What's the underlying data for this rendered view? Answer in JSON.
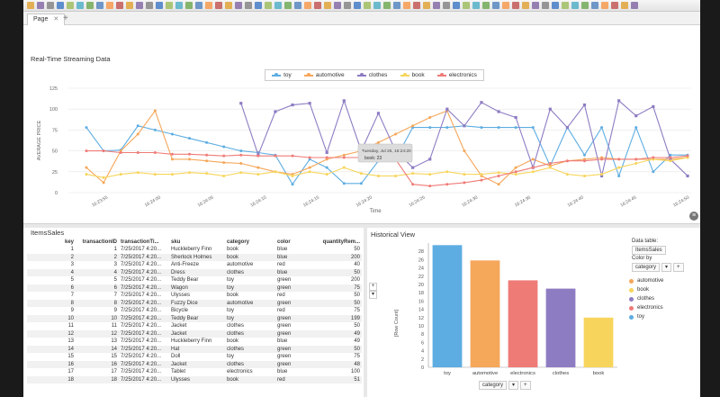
{
  "tabs": [
    {
      "label": "Page"
    }
  ],
  "stream_panel": {
    "title": "Real-Time Streaming Data"
  },
  "sales_panel": {
    "title": "ItemsSales"
  },
  "history_panel": {
    "title": "Historical View"
  },
  "history_controls": {
    "data_table_label": "Data table:",
    "data_table_value": "ItemsSales",
    "color_by_label": "Color by",
    "color_by_value": "category",
    "axis_x_value": "category",
    "axis_y_label": "[Row Count]"
  },
  "colors": {
    "toy": "#5dade2",
    "automotive": "#f5a75a",
    "clothes": "#8e7cc3",
    "book": "#f7d55c",
    "electronics": "#ef7b77"
  },
  "table": {
    "columns": [
      "key",
      "transactionID",
      "transactionTi...",
      "sku",
      "category",
      "color",
      "quantityRem..."
    ],
    "rows": [
      [
        "1",
        "1",
        "7/25/2017 4:20...",
        "Huckleberry Finn",
        "book",
        "blue",
        "50"
      ],
      [
        "2",
        "2",
        "7/25/2017 4:20...",
        "Sherlock Holmes",
        "book",
        "blue",
        "200"
      ],
      [
        "3",
        "3",
        "7/25/2017 4:20...",
        "Anti-Freeze",
        "automotive",
        "red",
        "40"
      ],
      [
        "4",
        "4",
        "7/25/2017 4:20...",
        "Dress",
        "clothes",
        "blue",
        "50"
      ],
      [
        "5",
        "5",
        "7/25/2017 4:20...",
        "Teddy Bear",
        "toy",
        "green",
        "200"
      ],
      [
        "6",
        "6",
        "7/25/2017 4:20...",
        "Wagon",
        "toy",
        "green",
        "75"
      ],
      [
        "7",
        "7",
        "7/25/2017 4:20...",
        "Ulysses",
        "book",
        "red",
        "50"
      ],
      [
        "8",
        "8",
        "7/25/2017 4:20...",
        "Fuzzy Dice",
        "automotive",
        "green",
        "50"
      ],
      [
        "9",
        "9",
        "7/25/2017 4:20...",
        "Bicycle",
        "toy",
        "red",
        "75"
      ],
      [
        "10",
        "10",
        "7/25/2017 4:20...",
        "Teddy Bear",
        "toy",
        "green",
        "199"
      ],
      [
        "11",
        "11",
        "7/25/2017 4:20...",
        "Jacket",
        "clothes",
        "green",
        "50"
      ],
      [
        "12",
        "12",
        "7/25/2017 4:20...",
        "Jacket",
        "clothes",
        "green",
        "49"
      ],
      [
        "13",
        "13",
        "7/25/2017 4:20...",
        "Huckleberry Finn",
        "book",
        "blue",
        "49"
      ],
      [
        "14",
        "14",
        "7/25/2017 4:20...",
        "Hat",
        "clothes",
        "green",
        "50"
      ],
      [
        "15",
        "15",
        "7/25/2017 4:20...",
        "Doll",
        "toy",
        "green",
        "75"
      ],
      [
        "16",
        "16",
        "7/25/2017 4:20...",
        "Jacket",
        "clothes",
        "green",
        "48"
      ],
      [
        "17",
        "17",
        "7/25/2017 4:20...",
        "Tablet",
        "electronics",
        "blue",
        "100"
      ],
      [
        "18",
        "18",
        "7/25/2017 4:20...",
        "Ulysses",
        "book",
        "red",
        "51"
      ]
    ]
  },
  "chart_data": [
    {
      "type": "line",
      "title": "",
      "xlabel": "Time",
      "ylabel": "AVERAGE PRICE",
      "ylim": [
        0,
        125
      ],
      "yticks": [
        "0",
        "25",
        "50",
        "75",
        "100",
        "125"
      ],
      "xticks": [
        "16:23:55",
        "16:24:00",
        "16:24:05",
        "16:24:10",
        "16:24:15",
        "16:24:20",
        "16:24:25",
        "16:24:30",
        "16:24:35",
        "16:24:40",
        "16:24:45",
        "16:24:50"
      ],
      "legend_position": "top",
      "tooltip": {
        "line1": "Tuesday, Jul 25, 16:24:20",
        "line2": "book: 23"
      },
      "series": [
        {
          "name": "toy",
          "values": [
            78,
            50,
            51,
            80,
            75,
            70,
            65,
            60,
            55,
            50,
            48,
            45,
            10,
            40,
            30,
            11,
            11,
            38,
            40,
            78,
            78,
            78,
            80,
            78,
            78,
            78,
            78,
            32,
            78,
            45,
            78,
            20,
            78,
            25,
            45,
            45
          ]
        },
        {
          "name": "automotive",
          "values": [
            30,
            12,
            50,
            70,
            98,
            40,
            40,
            38,
            36,
            35,
            30,
            25,
            22,
            30,
            40,
            45,
            50,
            60,
            70,
            80,
            90,
            98,
            50,
            20,
            10,
            30,
            40,
            32,
            38,
            40,
            42,
            40,
            40,
            40,
            40,
            42
          ]
        },
        {
          "name": "clothes",
          "values": [
            null,
            null,
            null,
            null,
            null,
            null,
            null,
            null,
            null,
            107,
            45,
            97,
            105,
            107,
            48,
            110,
            50,
            95,
            50,
            30,
            40,
            100,
            80,
            108,
            97,
            90,
            30,
            100,
            78,
            105,
            20,
            110,
            92,
            103,
            40,
            20
          ]
        },
        {
          "name": "book",
          "values": [
            22,
            18,
            22,
            24,
            22,
            22,
            24,
            23,
            20,
            24,
            22,
            25,
            20,
            25,
            22,
            30,
            23,
            20,
            20,
            23,
            22,
            25,
            22,
            22,
            24,
            22,
            25,
            30,
            22,
            20,
            22,
            30,
            35,
            40,
            38,
            42
          ]
        },
        {
          "name": "electronics",
          "values": [
            50,
            50,
            48,
            48,
            48,
            46,
            46,
            45,
            44,
            45,
            44,
            44,
            44,
            42,
            42,
            42,
            42,
            40,
            40,
            10,
            8,
            10,
            12,
            15,
            20,
            25,
            30,
            35,
            38,
            38,
            40,
            40,
            40,
            42,
            42,
            44
          ]
        }
      ]
    },
    {
      "type": "bar",
      "title": "",
      "xlabel": "category",
      "ylabel": "[Row Count]",
      "ylim": [
        0,
        30
      ],
      "yticks": [
        "0",
        "2",
        "4",
        "6",
        "8",
        "10",
        "12",
        "14",
        "16",
        "18",
        "20",
        "22",
        "24",
        "26",
        "28"
      ],
      "categories": [
        "toy",
        "automotive",
        "electronics",
        "clothes",
        "book"
      ],
      "values": [
        29.5,
        25.8,
        21,
        19,
        12
      ]
    }
  ]
}
